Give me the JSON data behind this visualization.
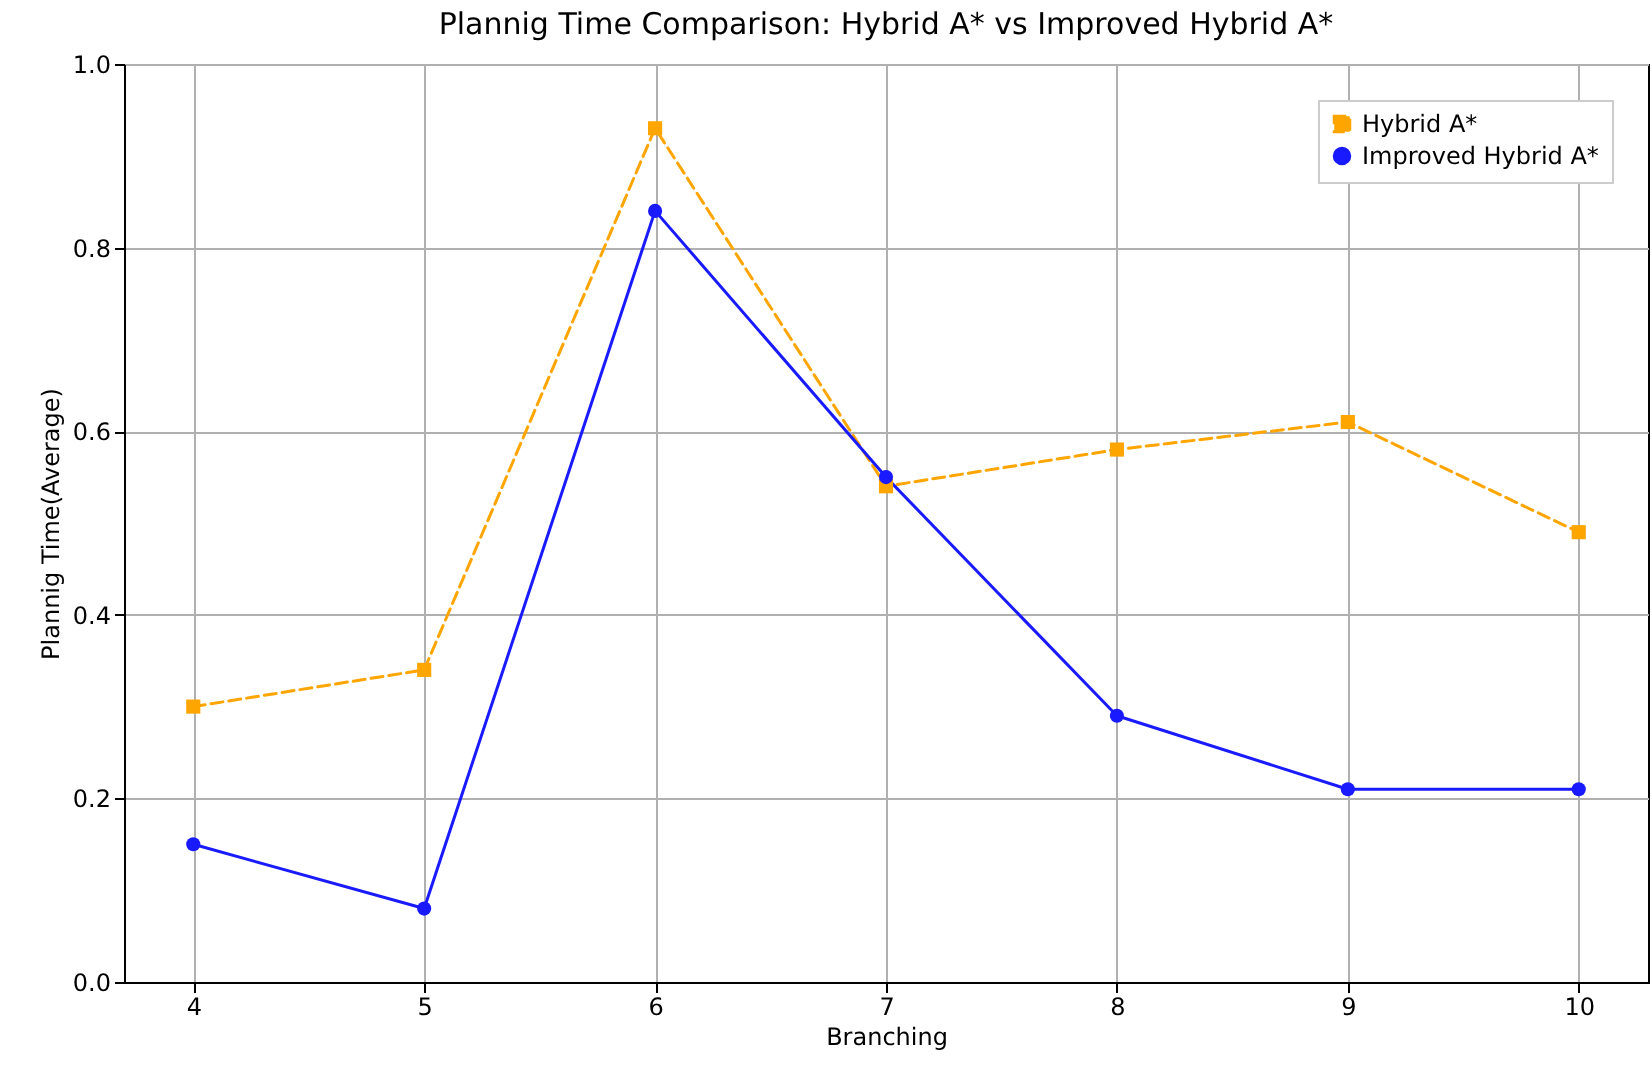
{
  "chart_data": {
    "type": "line",
    "title": "Plannig Time Comparison: Hybrid A* vs Improved Hybrid A*",
    "xlabel": "Branching",
    "ylabel": "Plannig Time(Average)",
    "x": [
      4,
      5,
      6,
      7,
      8,
      9,
      10
    ],
    "series": [
      {
        "name": "Hybrid A*",
        "color": "#ffa500",
        "marker": "square",
        "line_style": "dashed",
        "values": [
          0.3,
          0.34,
          0.93,
          0.54,
          0.58,
          0.61,
          0.49
        ]
      },
      {
        "name": "Improved Hybrid A*",
        "color": "#1a1aff",
        "marker": "circle",
        "line_style": "solid",
        "values": [
          0.15,
          0.08,
          0.84,
          0.55,
          0.29,
          0.21,
          0.21
        ]
      }
    ],
    "xlim": [
      3.7,
      10.3
    ],
    "xticks": [
      4,
      5,
      6,
      7,
      8,
      9,
      10
    ],
    "ylim": [
      0,
      1
    ],
    "yticks": [
      {
        "value": 0,
        "label": "0.0"
      },
      0.2,
      0.4,
      0.6,
      0.8,
      {
        "value": 1,
        "label": "1.0"
      }
    ],
    "grid": true,
    "legend": "top right"
  }
}
